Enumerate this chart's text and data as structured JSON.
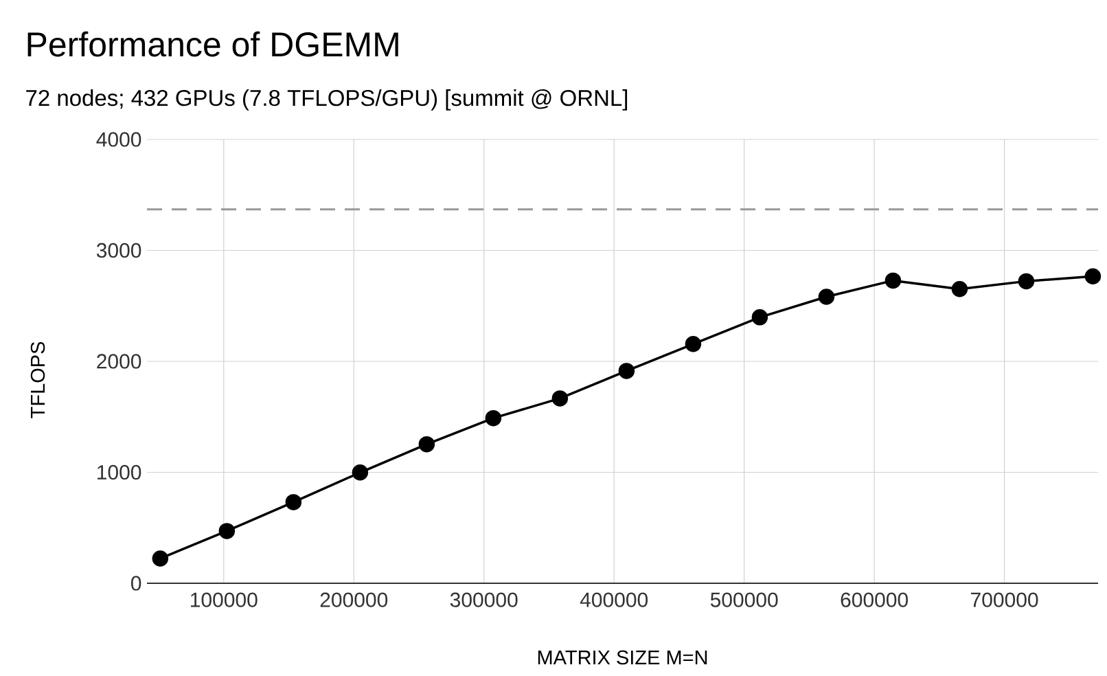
{
  "chart_data": {
    "type": "line",
    "title": "Performance of DGEMM",
    "subtitle": "72 nodes; 432 GPUs (7.8 TFLOPS/GPU)   [summit @ ORNL]",
    "xlabel": "MATRIX SIZE M=N",
    "ylabel": "TFLOPS",
    "x": [
      51200,
      102400,
      153600,
      204800,
      256000,
      307200,
      358400,
      409600,
      460800,
      512000,
      563200,
      614400,
      665600,
      716800,
      768000
    ],
    "series": [
      {
        "color": "#000000",
        "values": [
          223,
          471,
          731,
          998,
          1253,
          1488,
          1666,
          1914,
          2156,
          2397,
          2582,
          2728,
          2652,
          2722,
          2766
        ]
      }
    ],
    "xlim": [
      41000,
      772000
    ],
    "ylim": [
      0,
      4000
    ],
    "xticks": [
      100000,
      200000,
      300000,
      400000,
      500000,
      600000,
      700000
    ],
    "yticks": [
      0,
      1000,
      2000,
      3000,
      4000
    ],
    "ref_lines": [
      {
        "axis": "y",
        "value": 3370,
        "color": "#999999",
        "line_style": "dashed"
      }
    ],
    "grid": true,
    "marker": "circle",
    "line_style": "solid"
  }
}
